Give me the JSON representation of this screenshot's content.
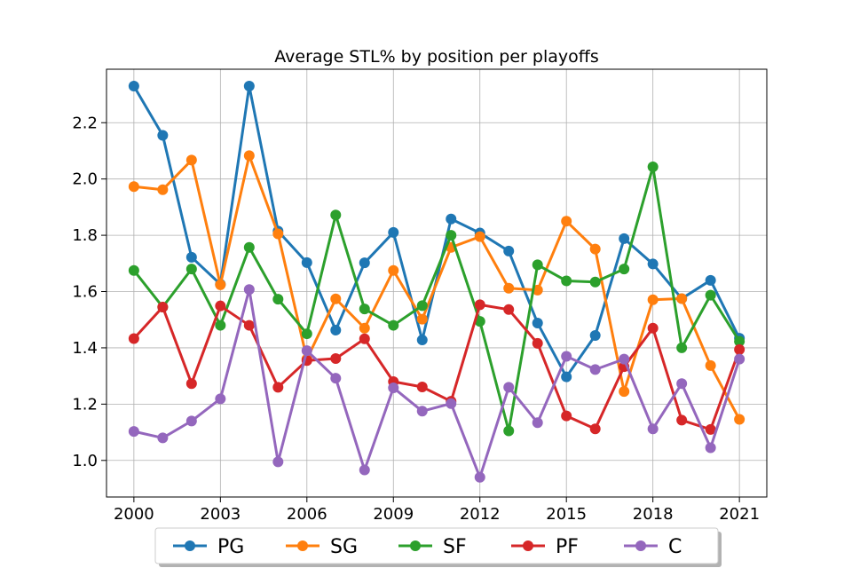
{
  "chart_data": {
    "type": "line",
    "title": "Average STL% by position per playoffs",
    "xlabel": "",
    "ylabel": "",
    "x": [
      2000,
      2001,
      2002,
      2003,
      2004,
      2005,
      2006,
      2007,
      2008,
      2009,
      2010,
      2011,
      2012,
      2013,
      2014,
      2015,
      2016,
      2017,
      2018,
      2019,
      2020,
      2021
    ],
    "xlim": [
      1999.05,
      2021.95
    ],
    "ylim": [
      0.87,
      2.39
    ],
    "xticks": [
      "2000",
      "2003",
      "2006",
      "2009",
      "2012",
      "2015",
      "2018",
      "2021"
    ],
    "yticks": [
      "1.0",
      "1.2",
      "1.4",
      "1.6",
      "1.8",
      "2.0",
      "2.2"
    ],
    "grid": true,
    "legend_position": "bottom-center",
    "series": [
      {
        "name": "PG",
        "color": "#1f77b4",
        "values": [
          2.33,
          2.155,
          1.722,
          1.626,
          2.33,
          1.815,
          1.703,
          1.463,
          1.702,
          1.81,
          1.428,
          1.858,
          1.808,
          1.744,
          1.488,
          1.297,
          1.444,
          1.788,
          1.698,
          1.575,
          1.64,
          1.434
        ]
      },
      {
        "name": "SG",
        "color": "#ff7f0e",
        "values": [
          1.973,
          1.962,
          2.067,
          1.624,
          2.083,
          1.805,
          1.36,
          1.574,
          1.47,
          1.675,
          1.502,
          1.757,
          1.795,
          1.612,
          1.605,
          1.85,
          1.751,
          1.245,
          1.571,
          1.575,
          1.337,
          1.146
        ]
      },
      {
        "name": "SF",
        "color": "#2ca02c",
        "values": [
          1.675,
          1.545,
          1.68,
          1.48,
          1.757,
          1.573,
          1.45,
          1.872,
          1.538,
          1.48,
          1.55,
          1.8,
          1.494,
          1.105,
          1.695,
          1.638,
          1.634,
          1.68,
          2.043,
          1.4,
          1.587,
          1.423
        ]
      },
      {
        "name": "PF",
        "color": "#d62728",
        "values": [
          1.433,
          1.545,
          1.273,
          1.549,
          1.48,
          1.26,
          1.355,
          1.362,
          1.432,
          1.28,
          1.261,
          1.21,
          1.553,
          1.536,
          1.416,
          1.158,
          1.112,
          1.333,
          1.47,
          1.143,
          1.11,
          1.394
        ]
      },
      {
        "name": "C",
        "color": "#9467bd",
        "values": [
          1.103,
          1.08,
          1.14,
          1.219,
          1.607,
          0.995,
          1.39,
          1.292,
          0.966,
          1.258,
          1.175,
          1.202,
          0.94,
          1.26,
          1.134,
          1.37,
          1.323,
          1.36,
          1.112,
          1.273,
          1.045,
          1.36
        ]
      }
    ]
  }
}
